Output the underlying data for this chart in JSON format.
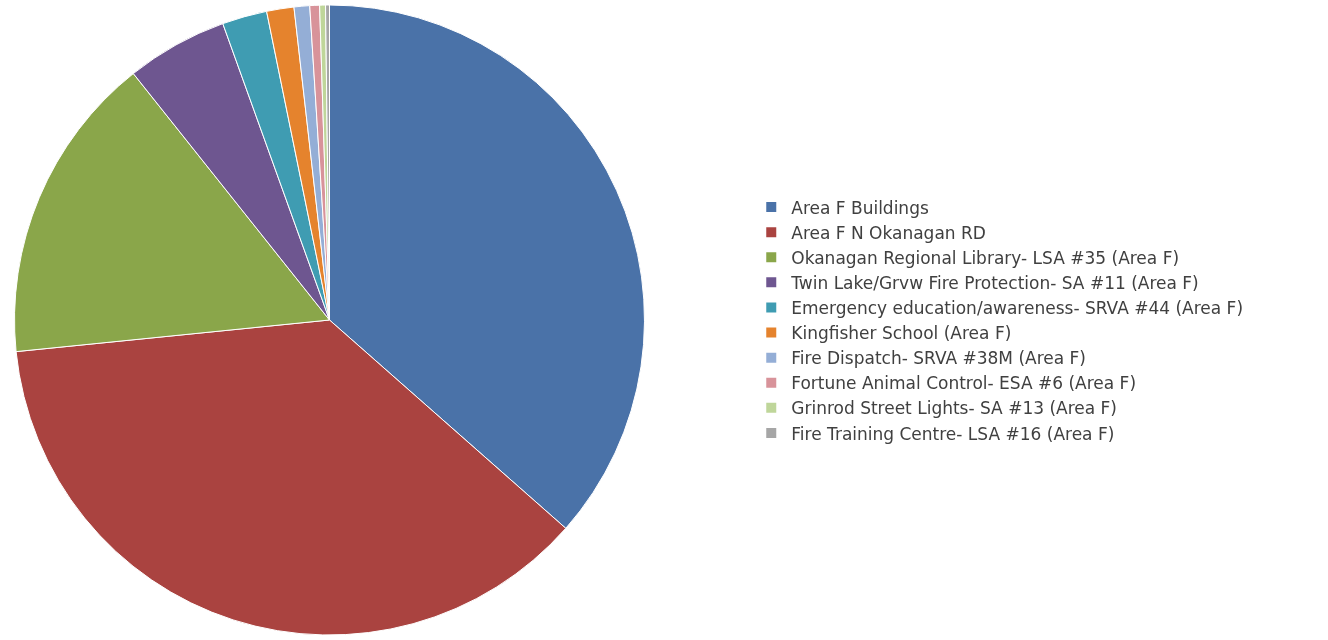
{
  "chart_data": {
    "type": "pie",
    "legend": "right",
    "categories": [
      "Area F Buildings",
      "Area F N Okanagan RD",
      "Okanagan Regional Library- LSA #35 (Area F)",
      "Twin Lake/Grvw Fire Protection- SA #11 (Area F)",
      "Emergency education/awareness- SRVA #44 (Area F)",
      "Kingfisher School (Area F)",
      "Fire Dispatch- SRVA #38M (Area F)",
      "Fortune Animal Control- ESA #6 (Area F)",
      "Grinrod Street Lights- SA #13 (Area F)",
      "Fire Training Centre- LSA #16 (Area F)"
    ],
    "values": [
      36.5,
      36.9,
      15.9,
      5.2,
      2.3,
      1.4,
      0.8,
      0.5,
      0.3,
      0.2
    ],
    "colors": [
      "#4a72a8",
      "#aa4340",
      "#8aa64a",
      "#6e5690",
      "#3f9cb2",
      "#e5832d",
      "#94aed6",
      "#d8939a",
      "#bfd69a",
      "#a6a6a6"
    ]
  }
}
